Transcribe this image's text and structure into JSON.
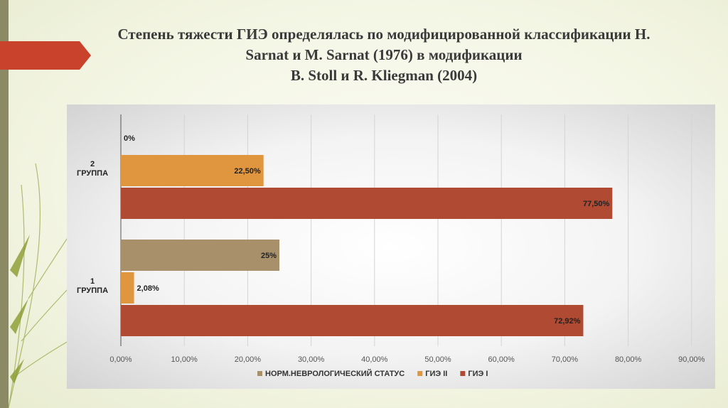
{
  "slide": {
    "title_lines": [
      "Степень тяжести ГИЭ определялась по модифицированной классификации Н.",
      "Sarnat и М.  Sarnat (1976) в модификации",
      "B. Stoll и R. Kliegman (2004)"
    ]
  },
  "colors": {
    "accent": "#c9432c",
    "norm": "#a8916a",
    "gie2": "#e0963f",
    "gie1": "#b04a33"
  },
  "chart_data": {
    "type": "bar",
    "orientation": "horizontal",
    "xlim": [
      0,
      90
    ],
    "xticks": [
      "0,00%",
      "10,00%",
      "20,00%",
      "30,00%",
      "40,00%",
      "50,00%",
      "60,00%",
      "70,00%",
      "80,00%",
      "90,00%"
    ],
    "grid": true,
    "legend_position": "bottom",
    "categories": [
      {
        "label_lines": [
          "2",
          "ГРУППА"
        ]
      },
      {
        "label_lines": [
          "1",
          "ГРУППА"
        ]
      }
    ],
    "series": [
      {
        "name": "НОРМ.НЕВРОЛОГИЧЕСКИЙ СТАТУС",
        "color_key": "norm",
        "values": [
          0,
          25
        ],
        "labels": [
          "0%",
          "25%"
        ]
      },
      {
        "name": "ГИЭ II",
        "color_key": "gie2",
        "values": [
          22.5,
          2.08
        ],
        "labels": [
          "22,50%",
          "2,08%"
        ]
      },
      {
        "name": "ГИЭ I",
        "color_key": "gie1",
        "values": [
          77.5,
          72.92
        ],
        "labels": [
          "77,50%",
          "72,92%"
        ]
      }
    ]
  }
}
